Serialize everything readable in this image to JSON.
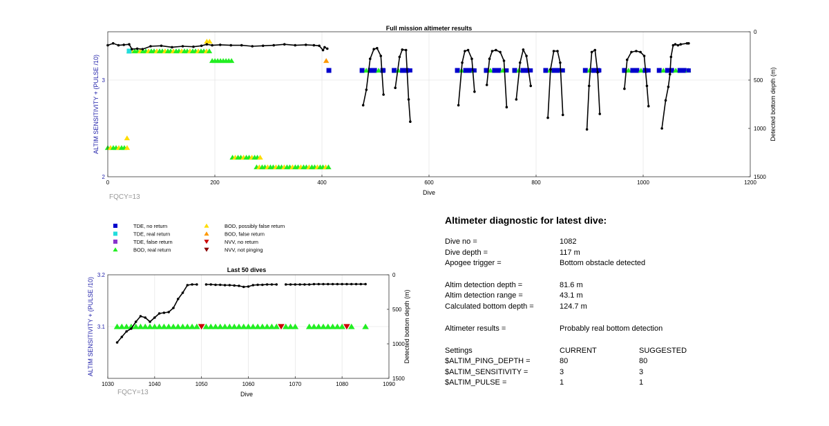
{
  "colors": {
    "tde_no_return": "#0000cc",
    "tde_real_return": "#22dddd",
    "tde_false_return": "#8833cc",
    "bod_real_return": "#22ee22",
    "bod_possibly_false": "#ffdd00",
    "bod_false_return": "#ff9900",
    "nvv_no_return": "#cc0000",
    "nvv_not_pinging": "#880000",
    "depth_line": "#000000",
    "left_axis_label": "#2222aa",
    "fqcy_text": "#999999"
  },
  "chart_data": [
    {
      "type": "scatter",
      "title": "Full mission altimeter results",
      "xlabel": "Dive",
      "ylabel": "ALTIM SENSITIVITY + (PULSE /10)",
      "y2label": "Detected bottom depth (m)",
      "xlim": [
        0,
        1200
      ],
      "ylim": [
        2,
        3.5
      ],
      "y2lim": [
        0,
        1500
      ],
      "y2_reversed": true,
      "grid": true,
      "xticks": [
        "0",
        "200",
        "400",
        "600",
        "800",
        "1000",
        "1200"
      ],
      "xtick_values": [
        0,
        200,
        400,
        600,
        800,
        1000,
        1200
      ],
      "yticks": [
        "2",
        "3"
      ],
      "ytick_values": [
        2,
        3
      ],
      "y2ticks": [
        "0",
        "500",
        "1000",
        "1500"
      ],
      "y2tick_values": [
        0,
        500,
        1000,
        1500
      ],
      "annotation": "FQCY=13",
      "marker_bands": [
        {
          "from": 0,
          "to": 40,
          "y": 2.3,
          "kind": "bod_real_return",
          "type": "up",
          "mix": [
            "bod_possibly_false"
          ]
        },
        {
          "from": 36,
          "to": 40,
          "y": 2.4,
          "kind": "bod_possibly_false",
          "type": "up"
        },
        {
          "from": 40,
          "to": 190,
          "y": 3.3,
          "kind": "bod_real_return",
          "type": "up",
          "mix": [
            "bod_possibly_false"
          ]
        },
        {
          "from": 40,
          "to": 45,
          "y": 3.3,
          "kind": "tde_real_return",
          "type": "square"
        },
        {
          "from": 185,
          "to": 195,
          "y": 3.4,
          "kind": "bod_possibly_false",
          "type": "up"
        },
        {
          "from": 195,
          "to": 235,
          "y": 3.2,
          "kind": "bod_real_return",
          "type": "up"
        },
        {
          "from": 233,
          "to": 285,
          "y": 2.2,
          "kind": "bod_real_return",
          "type": "up",
          "mix": [
            "bod_possibly_false"
          ]
        },
        {
          "from": 278,
          "to": 413,
          "y": 2.1,
          "kind": "bod_real_return",
          "type": "up",
          "mix": [
            "bod_possibly_false"
          ]
        },
        {
          "from": 408,
          "to": 413,
          "y": 3.2,
          "kind": "bod_false_return",
          "type": "up"
        },
        {
          "from": 413,
          "to": 413,
          "y": 3.1,
          "kind": "tde_no_return",
          "type": "square"
        },
        {
          "from": 475,
          "to": 515,
          "y": 3.1,
          "kind": "tde_no_return",
          "type": "square",
          "mix": [
            "bod_real_return"
          ]
        },
        {
          "from": 535,
          "to": 565,
          "y": 3.1,
          "kind": "tde_no_return",
          "type": "square",
          "mix": [
            "bod_real_return"
          ]
        },
        {
          "from": 653,
          "to": 685,
          "y": 3.1,
          "kind": "tde_no_return",
          "type": "square",
          "mix": [
            "bod_real_return"
          ]
        },
        {
          "from": 707,
          "to": 745,
          "y": 3.1,
          "kind": "tde_no_return",
          "type": "square",
          "mix": [
            "bod_real_return"
          ]
        },
        {
          "from": 760,
          "to": 790,
          "y": 3.1,
          "kind": "tde_no_return",
          "type": "square",
          "mix": [
            "bod_real_return"
          ]
        },
        {
          "from": 818,
          "to": 850,
          "y": 3.1,
          "kind": "tde_no_return",
          "type": "square",
          "mix": [
            "bod_real_return"
          ]
        },
        {
          "from": 892,
          "to": 918,
          "y": 3.1,
          "kind": "tde_no_return",
          "type": "square",
          "mix": [
            "bod_real_return"
          ]
        },
        {
          "from": 965,
          "to": 1010,
          "y": 3.1,
          "kind": "tde_no_return",
          "type": "square",
          "mix": [
            "bod_real_return"
          ]
        },
        {
          "from": 1030,
          "to": 1085,
          "y": 3.1,
          "kind": "tde_no_return",
          "type": "square",
          "mix": [
            "bod_real_return"
          ]
        }
      ],
      "depth_series": [
        [
          [
            0,
            140
          ],
          [
            10,
            120
          ],
          [
            20,
            140
          ],
          [
            30,
            135
          ],
          [
            40,
            130
          ],
          [
            45,
            180
          ],
          [
            55,
            175
          ],
          [
            65,
            180
          ],
          [
            80,
            150
          ],
          [
            100,
            145
          ],
          [
            120,
            160
          ],
          [
            140,
            150
          ],
          [
            160,
            155
          ],
          [
            175,
            145
          ],
          [
            185,
            130
          ],
          [
            195,
            140
          ],
          [
            210,
            135
          ],
          [
            230,
            140
          ],
          [
            250,
            140
          ],
          [
            270,
            150
          ],
          [
            290,
            145
          ],
          [
            310,
            140
          ],
          [
            330,
            130
          ],
          [
            350,
            140
          ],
          [
            370,
            135
          ],
          [
            385,
            140
          ],
          [
            395,
            145
          ],
          [
            402,
            190
          ],
          [
            405,
            160
          ],
          [
            410,
            175
          ]
        ],
        [
          [
            477,
            760
          ],
          [
            483,
            600
          ],
          [
            490,
            280
          ],
          [
            497,
            180
          ],
          [
            503,
            170
          ],
          [
            510,
            250
          ],
          [
            515,
            650
          ]
        ],
        [
          [
            537,
            580
          ],
          [
            545,
            260
          ],
          [
            550,
            185
          ],
          [
            557,
            190
          ],
          [
            562,
            700
          ],
          [
            565,
            930
          ]
        ],
        [
          [
            655,
            760
          ],
          [
            662,
            320
          ],
          [
            667,
            200
          ],
          [
            673,
            190
          ],
          [
            680,
            280
          ],
          [
            685,
            620
          ]
        ],
        [
          [
            708,
            550
          ],
          [
            713,
            280
          ],
          [
            718,
            200
          ],
          [
            725,
            190
          ],
          [
            733,
            210
          ],
          [
            740,
            300
          ],
          [
            745,
            780
          ]
        ],
        [
          [
            763,
            700
          ],
          [
            770,
            320
          ],
          [
            776,
            185
          ],
          [
            782,
            250
          ],
          [
            790,
            560
          ]
        ],
        [
          [
            822,
            890
          ],
          [
            827,
            390
          ],
          [
            833,
            200
          ],
          [
            840,
            200
          ],
          [
            845,
            320
          ],
          [
            850,
            860
          ]
        ],
        [
          [
            895,
            1010
          ],
          [
            899,
            560
          ],
          [
            904,
            210
          ],
          [
            910,
            190
          ],
          [
            915,
            420
          ],
          [
            919,
            850
          ]
        ],
        [
          [
            965,
            590
          ],
          [
            970,
            290
          ],
          [
            978,
            210
          ],
          [
            987,
            200
          ],
          [
            995,
            210
          ],
          [
            1002,
            250
          ],
          [
            1007,
            560
          ],
          [
            1010,
            770
          ]
        ],
        [
          [
            1035,
            1000
          ],
          [
            1042,
            710
          ],
          [
            1047,
            570
          ],
          [
            1050,
            440
          ],
          [
            1052,
            260
          ],
          [
            1056,
            140
          ],
          [
            1060,
            130
          ],
          [
            1065,
            140
          ],
          [
            1070,
            130
          ],
          [
            1082,
            120
          ],
          [
            1085,
            120
          ]
        ]
      ]
    },
    {
      "type": "scatter",
      "title": "Last 50 dives",
      "xlabel": "Dive",
      "ylabel": "ALTIM SENSITIVITY + (PULSE /10)",
      "y2label": "Detected bottom depth (m)",
      "xlim": [
        1030,
        1090
      ],
      "ylim": [
        3.0,
        3.2
      ],
      "y2lim": [
        0,
        1500
      ],
      "y2_reversed": true,
      "grid": true,
      "xticks": [
        "1030",
        "1040",
        "1050",
        "1060",
        "1070",
        "1080",
        "1090"
      ],
      "xtick_values": [
        1030,
        1040,
        1050,
        1060,
        1070,
        1080,
        1090
      ],
      "yticks": [
        "3.1",
        "3.2"
      ],
      "ytick_values": [
        3.1,
        3.2
      ],
      "y2ticks": [
        "0",
        "500",
        "1000",
        "1500"
      ],
      "y2tick_values": [
        0,
        500,
        1000,
        1500
      ],
      "annotation": "FQCY=13",
      "markers": {
        "y": 3.1,
        "bod_real_return": [
          1032,
          1033,
          1034,
          1035,
          1036,
          1037,
          1038,
          1039,
          1040,
          1041,
          1042,
          1043,
          1044,
          1045,
          1046,
          1047,
          1048,
          1049,
          1051,
          1052,
          1053,
          1054,
          1055,
          1056,
          1057,
          1058,
          1059,
          1060,
          1061,
          1062,
          1063,
          1064,
          1065,
          1066,
          1068,
          1069,
          1070,
          1073,
          1074,
          1075,
          1076,
          1077,
          1078,
          1079,
          1080,
          1082,
          1085
        ],
        "nvv_no_return": [
          1050,
          1067,
          1081
        ]
      },
      "depth_series": [
        [
          [
            1032,
            980
          ],
          [
            1033,
            900
          ],
          [
            1034,
            820
          ],
          [
            1035,
            780
          ],
          [
            1036,
            680
          ],
          [
            1037,
            600
          ],
          [
            1038,
            620
          ],
          [
            1039,
            680
          ],
          [
            1040,
            620
          ],
          [
            1041,
            560
          ],
          [
            1042,
            550
          ],
          [
            1043,
            540
          ],
          [
            1044,
            480
          ],
          [
            1045,
            350
          ],
          [
            1046,
            260
          ],
          [
            1047,
            150
          ],
          [
            1048,
            140
          ],
          [
            1049,
            140
          ]
        ],
        [
          [
            1051,
            140
          ],
          [
            1052,
            140
          ],
          [
            1053,
            145
          ],
          [
            1054,
            145
          ],
          [
            1055,
            150
          ],
          [
            1056,
            150
          ],
          [
            1057,
            155
          ],
          [
            1058,
            160
          ],
          [
            1059,
            175
          ],
          [
            1060,
            170
          ],
          [
            1061,
            150
          ],
          [
            1062,
            145
          ],
          [
            1063,
            145
          ],
          [
            1064,
            140
          ],
          [
            1065,
            140
          ],
          [
            1066,
            140
          ]
        ],
        [
          [
            1068,
            140
          ],
          [
            1069,
            140
          ],
          [
            1070,
            140
          ],
          [
            1071,
            140
          ],
          [
            1072,
            140
          ],
          [
            1073,
            140
          ],
          [
            1074,
            135
          ],
          [
            1075,
            135
          ],
          [
            1076,
            135
          ],
          [
            1077,
            135
          ],
          [
            1078,
            135
          ],
          [
            1079,
            135
          ],
          [
            1080,
            135
          ],
          [
            1081,
            135
          ],
          [
            1082,
            135
          ],
          [
            1083,
            135
          ],
          [
            1084,
            135
          ],
          [
            1085,
            135
          ]
        ]
      ]
    }
  ],
  "legend": {
    "left": [
      {
        "label": "TDE, no return",
        "marker": "square",
        "color_key": "tde_no_return"
      },
      {
        "label": "TDE, real return",
        "marker": "square",
        "color_key": "tde_real_return"
      },
      {
        "label": "TDE, false return",
        "marker": "square",
        "color_key": "tde_false_return"
      },
      {
        "label": "BOD, real return",
        "marker": "up",
        "color_key": "bod_real_return"
      }
    ],
    "right": [
      {
        "label": "BOD, possibly false return",
        "marker": "up",
        "color_key": "bod_possibly_false"
      },
      {
        "label": "BOD, false return",
        "marker": "up",
        "color_key": "bod_false_return"
      },
      {
        "label": "NVV, no return",
        "marker": "down",
        "color_key": "nvv_no_return"
      },
      {
        "label": "NVV, not pinging",
        "marker": "down",
        "color_key": "nvv_not_pinging"
      }
    ]
  },
  "diagnostic": {
    "title": "Altimeter diagnostic for latest dive:",
    "dive_no_label": "Dive no =",
    "dive_no": "1082",
    "dive_depth_label": "Dive depth =",
    "dive_depth": "117 m",
    "apogee_label": "Apogee trigger =",
    "apogee": "Bottom obstacle detected",
    "altim_det_depth_label": "Altim detection depth =",
    "altim_det_depth": "81.6 m",
    "altim_det_range_label": "Altim detection range =",
    "altim_det_range": "43.1 m",
    "calc_bottom_label": "Calculated bottom depth =",
    "calc_bottom": "124.7 m",
    "results_label": "Altimeter results =",
    "results": "Probably real bottom detection",
    "settings_label": "Settings",
    "current_label": "CURRENT",
    "suggested_label": "SUGGESTED",
    "ping_depth_label": "$ALTIM_PING_DEPTH =",
    "ping_depth_current": "80",
    "ping_depth_suggested": "80",
    "sensitivity_label": "$ALTIM_SENSITIVITY =",
    "sensitivity_current": "3",
    "sensitivity_suggested": "3",
    "pulse_label": "$ALTIM_PULSE =",
    "pulse_current": "1",
    "pulse_suggested": "1"
  }
}
